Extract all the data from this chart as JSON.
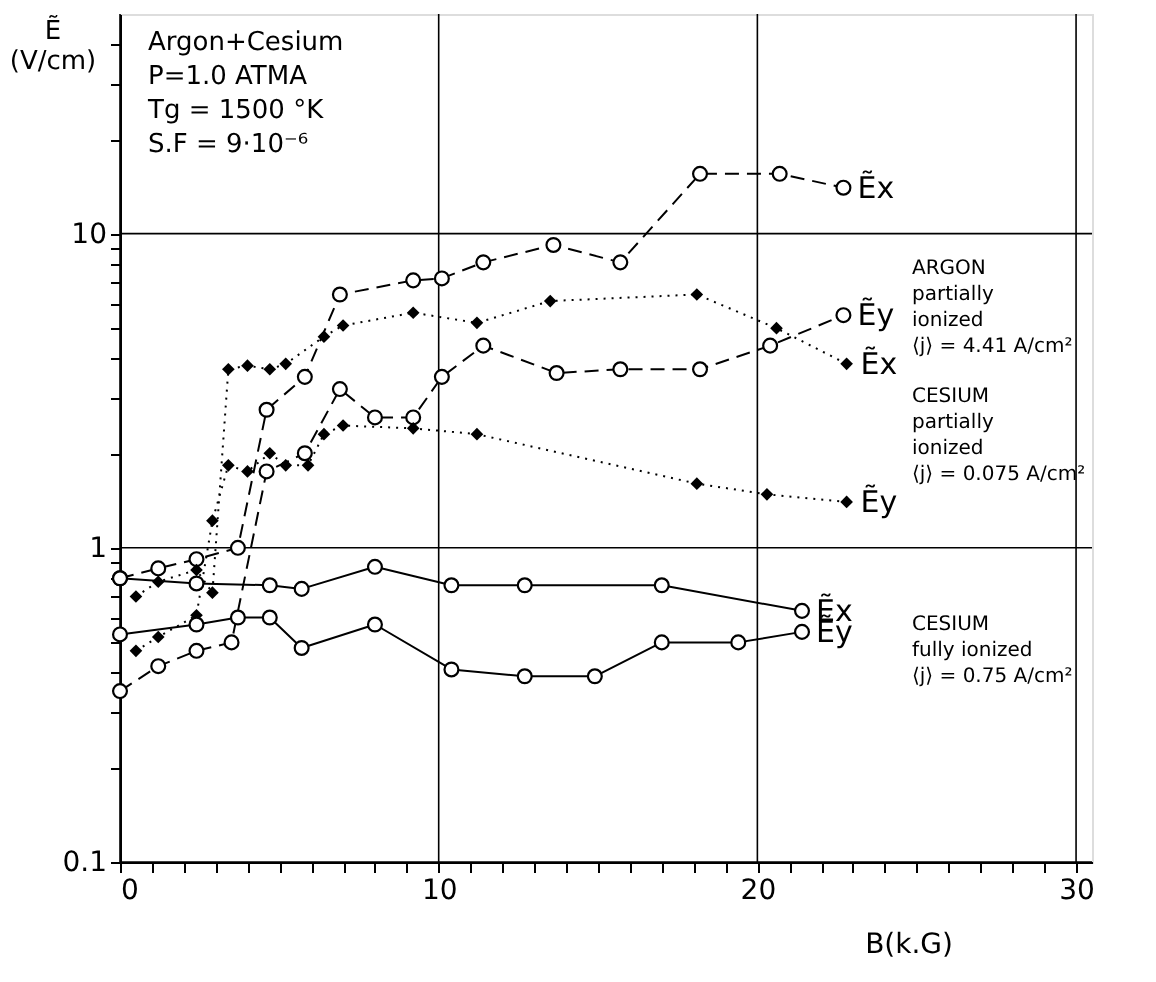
{
  "chart_data": {
    "type": "line",
    "xlabel": "B(k.G)",
    "ylabel": "Ẽ\n(V/cm)",
    "log": "y",
    "grid": true,
    "legend": false,
    "xlim": [
      0,
      30.5
    ],
    "ylim": [
      0.1,
      50
    ],
    "xticks": [
      0,
      {
        "value": 1,
        "label": null
      },
      {
        "value": 2,
        "label": null
      },
      {
        "value": 3,
        "label": null
      },
      {
        "value": 4,
        "label": null
      },
      {
        "value": 5,
        "label": null
      },
      {
        "value": 6,
        "label": null
      },
      {
        "value": 7,
        "label": null
      },
      {
        "value": 8,
        "label": null
      },
      {
        "value": 9,
        "label": null
      },
      10,
      {
        "value": 11,
        "label": null
      },
      {
        "value": 12,
        "label": null
      },
      {
        "value": 13,
        "label": null
      },
      {
        "value": 14,
        "label": null
      },
      {
        "value": 15,
        "label": null
      },
      {
        "value": 16,
        "label": null
      },
      {
        "value": 17,
        "label": null
      },
      {
        "value": 18,
        "label": null
      },
      {
        "value": 19,
        "label": null
      },
      20,
      {
        "value": 21,
        "label": null
      },
      {
        "value": 22,
        "label": null
      },
      {
        "value": 23,
        "label": null
      },
      {
        "value": 24,
        "label": null
      },
      {
        "value": 25,
        "label": null
      },
      {
        "value": 26,
        "label": null
      },
      {
        "value": 27,
        "label": null
      },
      {
        "value": 28,
        "label": null
      },
      {
        "value": 29,
        "label": null
      },
      30
    ],
    "yticks": [
      0.1,
      {
        "value": 0.2,
        "label": null
      },
      {
        "value": 0.3,
        "label": null
      },
      {
        "value": 0.4,
        "label": null
      },
      {
        "value": 0.5,
        "label": null
      },
      {
        "value": 0.6,
        "label": null
      },
      {
        "value": 0.7,
        "label": null
      },
      {
        "value": 0.8,
        "label": null
      },
      {
        "value": 0.9,
        "label": null
      },
      1,
      {
        "value": 2,
        "label": null
      },
      {
        "value": 3,
        "label": null
      },
      {
        "value": 4,
        "label": null
      },
      {
        "value": 5,
        "label": null
      },
      {
        "value": 6,
        "label": null
      },
      {
        "value": 7,
        "label": null
      },
      {
        "value": 8,
        "label": null
      },
      {
        "value": 9,
        "label": null
      },
      10,
      {
        "value": 20,
        "label": null
      },
      {
        "value": 30,
        "label": null
      },
      {
        "value": 40,
        "label": null
      }
    ],
    "series": [
      {
        "name": "Ẽx",
        "color": "#000000",
        "marker": "circle",
        "line_style": "dashed",
        "x": [
          0,
          1.2,
          2.4,
          3.7,
          4.6,
          5.8,
          6.9,
          9.2,
          10.1,
          11.4,
          13.6,
          15.7,
          18.2,
          20.7,
          22.7
        ],
        "values": [
          0.8,
          0.86,
          0.92,
          1.0,
          2.75,
          3.5,
          6.4,
          7.1,
          7.2,
          8.1,
          9.2,
          8.1,
          15.5,
          15.5,
          14.0
        ]
      },
      {
        "name": "Ẽy",
        "color": "#000000",
        "marker": "circle",
        "line_style": "dashed",
        "x": [
          0,
          1.2,
          2.4,
          3.5,
          4.6,
          5.8,
          6.9,
          8.0,
          9.2,
          10.1,
          11.4,
          13.7,
          15.7,
          18.2,
          20.4,
          22.7
        ],
        "values": [
          0.35,
          0.42,
          0.47,
          0.5,
          1.75,
          2.0,
          3.2,
          2.6,
          2.6,
          3.5,
          4.4,
          3.6,
          3.7,
          3.7,
          4.4,
          5.5
        ]
      },
      {
        "name": "Ẽx",
        "color": "#000000",
        "marker": "diamond",
        "line_style": "dotted",
        "x": [
          0.5,
          1.2,
          2.4,
          2.9,
          3.4,
          4.0,
          4.7,
          5.2,
          6.4,
          7.0,
          9.2,
          11.2,
          13.5,
          18.1,
          20.6,
          22.8
        ],
        "values": [
          0.7,
          0.78,
          0.85,
          0.72,
          3.7,
          3.8,
          3.7,
          3.85,
          4.7,
          5.1,
          5.6,
          5.2,
          6.1,
          6.4,
          5.0,
          3.85
        ]
      },
      {
        "name": "Ẽy",
        "color": "#000000",
        "marker": "diamond",
        "line_style": "dotted",
        "x": [
          0.5,
          1.2,
          2.4,
          2.9,
          3.4,
          4.0,
          4.7,
          5.2,
          5.9,
          6.4,
          7.0,
          9.2,
          11.2,
          18.1,
          20.3,
          22.8
        ],
        "values": [
          0.47,
          0.52,
          0.61,
          1.22,
          1.83,
          1.75,
          2.0,
          1.83,
          1.83,
          2.3,
          2.45,
          2.4,
          2.3,
          1.6,
          1.48,
          1.4
        ]
      },
      {
        "name": "Ẽx",
        "color": "#000000",
        "marker": "circle",
        "line_style": "solid",
        "x": [
          0,
          2.4,
          4.7,
          5.7,
          8.0,
          10.4,
          12.7,
          17.0,
          21.4
        ],
        "values": [
          0.8,
          0.77,
          0.76,
          0.74,
          0.87,
          0.76,
          0.76,
          0.76,
          0.63
        ]
      },
      {
        "name": "Ẽy",
        "color": "#000000",
        "marker": "circle",
        "line_style": "solid",
        "x": [
          0,
          2.4,
          3.7,
          4.7,
          5.7,
          8.0,
          10.4,
          12.7,
          14.9,
          17.0,
          19.4,
          21.4
        ],
        "values": [
          0.53,
          0.57,
          0.6,
          0.6,
          0.48,
          0.57,
          0.41,
          0.39,
          0.39,
          0.5,
          0.5,
          0.54
        ]
      }
    ],
    "annotations": [
      "Argon+Cesium\nP=1.0 ATMA\nTg = 1500 °K\nS.F = 9·10⁻⁶",
      "ARGON\npartially\nionized\n⟨j⟩ = 4.41 A/cm²",
      "CESIUM\npartially\nionized\n⟨j⟩ = 0.075 A/cm²",
      "CESIUM\nfully ionized\n⟨j⟩ = 0.75 A/cm²"
    ]
  }
}
